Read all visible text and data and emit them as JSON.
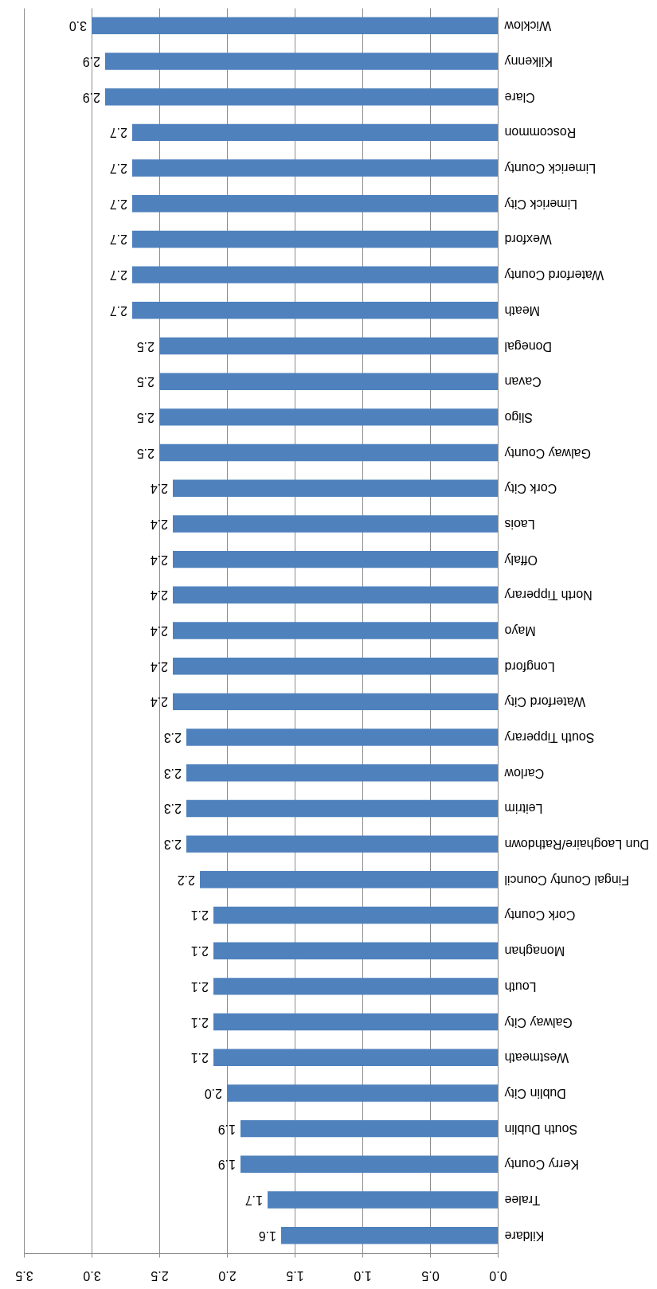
{
  "chart_data": {
    "type": "bar",
    "orientation": "horizontal",
    "color": "#4f81bd",
    "grid": "x",
    "categories": [
      "Wicklow",
      "Kilkenny",
      "Clare",
      "Roscommon",
      "Limerick County",
      "Limerick City",
      "Wexford",
      "Waterford County",
      "Meath",
      "Donegal",
      "Cavan",
      "Sligo",
      "Galway County",
      "Cork City",
      "Laois",
      "Offaly",
      "North Tipperary",
      "Mayo",
      "Longford",
      "Waterford City",
      "South Tipperary",
      "Carlow",
      "Leitrim",
      "Dun Laoghaire/Rathdown",
      "Fingal County Council",
      "Cork County",
      "Monaghan",
      "Louth",
      "Galway City",
      "Westmeath",
      "Dublin City",
      "South Dublin",
      "Kerry County",
      "Tralee",
      "Kildare"
    ],
    "values": [
      3.0,
      2.9,
      2.9,
      2.7,
      2.7,
      2.7,
      2.7,
      2.7,
      2.7,
      2.5,
      2.5,
      2.5,
      2.5,
      2.4,
      2.4,
      2.4,
      2.4,
      2.4,
      2.4,
      2.4,
      2.3,
      2.3,
      2.3,
      2.3,
      2.2,
      2.1,
      2.1,
      2.1,
      2.1,
      2.1,
      2.0,
      1.9,
      1.9,
      1.7,
      1.6
    ],
    "value_labels": [
      "3.0",
      "2.9",
      "2.9",
      "2.7",
      "2.7",
      "2.7",
      "2.7",
      "2.7",
      "2.7",
      "2.5",
      "2.5",
      "2.5",
      "2.5",
      "2.4",
      "2.4",
      "2.4",
      "2.4",
      "2.4",
      "2.4",
      "2.4",
      "2.3",
      "2.3",
      "2.3",
      "2.3",
      "2.2",
      "2.1",
      "2.1",
      "2.1",
      "2.1",
      "2.1",
      "2.0",
      "1.9",
      "1.9",
      "1.7",
      "1.6"
    ],
    "xlim": [
      3.5,
      0
    ],
    "xticks": [
      {
        "value": 0,
        "label": "0.0"
      },
      {
        "value": 0.5,
        "label": "0.5"
      },
      {
        "value": 1,
        "label": "1.0"
      },
      {
        "value": 1.5,
        "label": "1.5"
      },
      {
        "value": 2,
        "label": "2.0"
      },
      {
        "value": 2.5,
        "label": "2.5"
      },
      {
        "value": 3,
        "label": "3.0"
      },
      {
        "value": 3.5,
        "label": "3.5"
      }
    ]
  }
}
